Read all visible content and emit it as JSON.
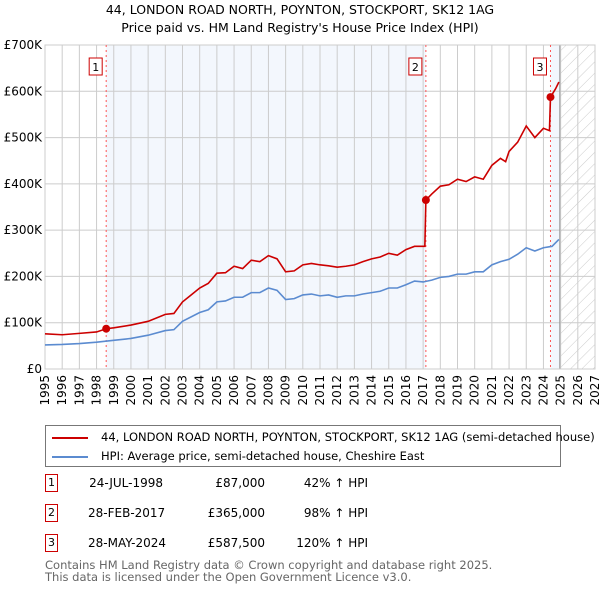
{
  "chart_data": {
    "type": "line",
    "title": "44, LONDON ROAD NORTH, POYNTON, STOCKPORT, SK12 1AG",
    "subtitle": "Price paid vs. HM Land Registry's House Price Index (HPI)",
    "xlim": [
      1995,
      2027
    ],
    "ylim": [
      0,
      700000
    ],
    "x_ticks": [
      "1995",
      "1996",
      "1997",
      "1998",
      "1999",
      "2000",
      "2001",
      "2002",
      "2003",
      "2004",
      "2005",
      "2006",
      "2007",
      "2008",
      "2009",
      "2010",
      "2011",
      "2012",
      "2013",
      "2014",
      "2015",
      "2016",
      "2017",
      "2018",
      "2019",
      "2020",
      "2021",
      "2022",
      "2023",
      "2024",
      "2025",
      "2026",
      "2027"
    ],
    "y_ticks": [
      {
        "v": 0,
        "label": "£0"
      },
      {
        "v": 100000,
        "label": "£100K"
      },
      {
        "v": 200000,
        "label": "£200K"
      },
      {
        "v": 300000,
        "label": "£300K"
      },
      {
        "v": 400000,
        "label": "£400K"
      },
      {
        "v": 500000,
        "label": "£500K"
      },
      {
        "v": 600000,
        "label": "£600K"
      },
      {
        "v": 700000,
        "label": "£700K"
      }
    ],
    "grid": true,
    "forecast_start": 2024.95,
    "series": [
      {
        "name": "44, LONDON ROAD NORTH, POYNTON, STOCKPORT, SK12 1AG (semi-detached house)",
        "color": "#cc0000",
        "x": [
          1995,
          1996,
          1997,
          1998,
          1998.56,
          1999,
          2000,
          2001,
          2002,
          2002.5,
          2003,
          2003.5,
          2004,
          2004.5,
          2005,
          2005.5,
          2006,
          2006.5,
          2007,
          2007.5,
          2008,
          2008.5,
          2009,
          2009.5,
          2010,
          2010.5,
          2011,
          2011.5,
          2012,
          2012.5,
          2013,
          2013.5,
          2014,
          2014.5,
          2015,
          2015.5,
          2016,
          2016.5,
          2017.1,
          2017.16,
          2017.5,
          2018,
          2018.5,
          2019,
          2019.5,
          2020,
          2020.5,
          2021,
          2021.5,
          2021.8,
          2022,
          2022.5,
          2023,
          2023.5,
          2024,
          2024.35,
          2024.41,
          2024.7,
          2024.9
        ],
        "y": [
          76000,
          74000,
          77000,
          80000,
          87000,
          89000,
          95000,
          103000,
          118000,
          120000,
          145000,
          160000,
          175000,
          185000,
          207000,
          208000,
          222000,
          217000,
          235000,
          232000,
          245000,
          238000,
          210000,
          212000,
          225000,
          228000,
          225000,
          223000,
          220000,
          222000,
          225000,
          232000,
          238000,
          242000,
          250000,
          246000,
          258000,
          265000,
          265000,
          365000,
          378000,
          395000,
          398000,
          410000,
          405000,
          415000,
          410000,
          440000,
          455000,
          448000,
          470000,
          490000,
          525000,
          500000,
          520000,
          515000,
          587500,
          605000,
          620000
        ]
      },
      {
        "name": "HPI: Average price, semi-detached house, Cheshire East",
        "color": "#5b8bd0",
        "x": [
          1995,
          1996,
          1997,
          1998,
          1999,
          2000,
          2001,
          2002,
          2002.5,
          2003,
          2004,
          2004.5,
          2005,
          2005.5,
          2006,
          2006.5,
          2007,
          2007.5,
          2008,
          2008.5,
          2009,
          2009.5,
          2010,
          2010.5,
          2011,
          2011.5,
          2012,
          2012.5,
          2013,
          2013.5,
          2014,
          2014.5,
          2015,
          2015.5,
          2016,
          2016.5,
          2017,
          2017.5,
          2018,
          2018.5,
          2019,
          2019.5,
          2020,
          2020.5,
          2021,
          2021.5,
          2022,
          2022.5,
          2023,
          2023.5,
          2024,
          2024.5,
          2024.9
        ],
        "y": [
          52000,
          53000,
          55000,
          58000,
          62000,
          66000,
          73000,
          83000,
          85000,
          103000,
          122000,
          128000,
          145000,
          147000,
          155000,
          155000,
          165000,
          165000,
          175000,
          170000,
          150000,
          152000,
          160000,
          162000,
          158000,
          160000,
          155000,
          158000,
          158000,
          162000,
          165000,
          168000,
          175000,
          175000,
          182000,
          190000,
          188000,
          192000,
          198000,
          200000,
          205000,
          205000,
          210000,
          210000,
          225000,
          232000,
          237000,
          248000,
          262000,
          255000,
          262000,
          265000,
          280000
        ]
      }
    ],
    "sales": [
      {
        "n": "1",
        "x": 1998.56,
        "y": 87000,
        "date": "24-JUL-1998",
        "price": "£87,000",
        "hpi": "42% ↑ HPI"
      },
      {
        "n": "2",
        "x": 2017.16,
        "y": 365000,
        "date": "28-FEB-2017",
        "price": "£365,000",
        "hpi": "98% ↑ HPI"
      },
      {
        "n": "3",
        "x": 2024.41,
        "y": 587500,
        "date": "28-MAY-2024",
        "price": "£587,500",
        "hpi": "120% ↑ HPI"
      }
    ]
  },
  "footer": [
    "Contains HM Land Registry data © Crown copyright and database right 2025.",
    "This data is licensed under the Open Government Licence v3.0."
  ]
}
